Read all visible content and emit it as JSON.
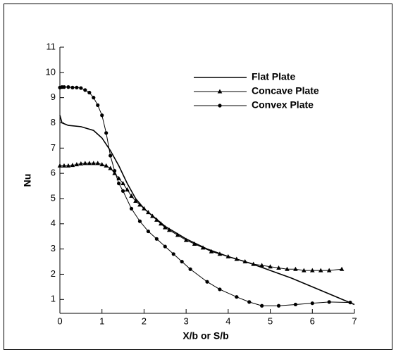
{
  "chart_data": {
    "type": "line",
    "xlabel": "X/b or S/b",
    "ylabel": "Nu",
    "xlim": [
      0,
      7
    ],
    "xticks": [
      0,
      1,
      2,
      3,
      4,
      5,
      6,
      7
    ],
    "ylim": [
      0.45,
      11
    ],
    "yticks": [
      1,
      2,
      3,
      4,
      5,
      6,
      7,
      8,
      9,
      10,
      11
    ],
    "legend": "upper-right",
    "series": [
      {
        "name": "Flat Plate",
        "color": "#000000",
        "x": [
          0,
          0.05,
          0.2,
          0.5,
          0.8,
          1.0,
          1.2,
          1.4,
          1.6,
          1.8,
          2.0,
          2.5,
          3.0,
          3.5,
          4.0,
          4.5,
          5.0,
          5.5,
          6.0,
          6.5,
          7.0
        ],
        "values": [
          8.3,
          8.0,
          7.9,
          7.85,
          7.7,
          7.4,
          6.9,
          6.3,
          5.6,
          5.0,
          4.6,
          3.9,
          3.4,
          3.0,
          2.7,
          2.45,
          2.15,
          1.85,
          1.5,
          1.15,
          0.8
        ]
      },
      {
        "name": "Concave Plate",
        "color": "#000000",
        "marker": "triangle",
        "x": [
          0,
          0.1,
          0.2,
          0.3,
          0.4,
          0.5,
          0.6,
          0.7,
          0.8,
          0.9,
          1.0,
          1.1,
          1.2,
          1.3,
          1.4,
          1.5,
          1.6,
          1.7,
          1.8,
          1.9,
          2.0,
          2.1,
          2.2,
          2.3,
          2.4,
          2.5,
          2.6,
          2.8,
          3.0,
          3.2,
          3.4,
          3.6,
          3.8,
          4.0,
          4.2,
          4.4,
          4.6,
          4.8,
          5.0,
          5.2,
          5.4,
          5.6,
          5.8,
          6.0,
          6.2,
          6.4,
          6.7
        ],
        "values": [
          6.3,
          6.3,
          6.3,
          6.32,
          6.35,
          6.38,
          6.4,
          6.4,
          6.4,
          6.4,
          6.35,
          6.3,
          6.2,
          6.0,
          5.8,
          5.6,
          5.35,
          5.1,
          4.9,
          4.75,
          4.6,
          4.45,
          4.3,
          4.15,
          4.0,
          3.85,
          3.75,
          3.55,
          3.35,
          3.2,
          3.05,
          2.9,
          2.8,
          2.7,
          2.6,
          2.5,
          2.4,
          2.35,
          2.3,
          2.25,
          2.2,
          2.2,
          2.15,
          2.15,
          2.15,
          2.15,
          2.2
        ]
      },
      {
        "name": "Convex Plate",
        "color": "#000000",
        "marker": "circle",
        "x": [
          0,
          0.05,
          0.1,
          0.2,
          0.3,
          0.4,
          0.5,
          0.6,
          0.7,
          0.8,
          0.9,
          1.0,
          1.1,
          1.2,
          1.3,
          1.4,
          1.5,
          1.7,
          1.9,
          2.1,
          2.3,
          2.5,
          2.7,
          2.9,
          3.1,
          3.5,
          3.8,
          4.2,
          4.5,
          4.8,
          5.2,
          5.6,
          6.0,
          6.4,
          6.9
        ],
        "values": [
          9.4,
          9.42,
          9.42,
          9.42,
          9.4,
          9.4,
          9.38,
          9.3,
          9.2,
          9.0,
          8.7,
          8.3,
          7.6,
          6.7,
          6.1,
          5.6,
          5.3,
          4.6,
          4.1,
          3.7,
          3.4,
          3.1,
          2.8,
          2.5,
          2.2,
          1.7,
          1.4,
          1.1,
          0.9,
          0.75,
          0.75,
          0.8,
          0.85,
          0.9,
          0.88
        ]
      }
    ]
  }
}
